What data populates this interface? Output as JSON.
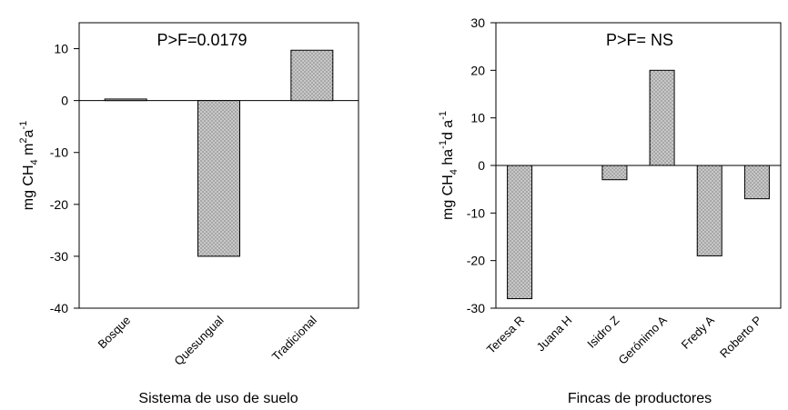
{
  "chart_data": [
    {
      "type": "bar",
      "annotation": "P>F=0.0179",
      "categories": [
        "Bosque",
        "Quesungual",
        "Tradicional"
      ],
      "values": [
        0.3,
        -30,
        9.7
      ],
      "xlabel": "Sistema de uso de suelo",
      "ylabel": {
        "base": "mg CH",
        "sub": "4",
        "mid1": " m",
        "sup1": "2",
        "mid2": "a",
        "sup2": "-1"
      },
      "ylim": [
        -40,
        15
      ],
      "yticks": [
        10,
        0,
        -10,
        -20,
        -30,
        -40
      ],
      "tick_labels": [
        "10",
        "0",
        "-10",
        "-20",
        "-30",
        "-40"
      ],
      "grid": false,
      "bar_pattern": "dotted-gray"
    },
    {
      "type": "bar",
      "annotation": "P>F= NS",
      "categories": [
        "Teresa R",
        "Juana H",
        "Isidro Z",
        "Gerónimo A",
        "Fredy A",
        "Roberto P"
      ],
      "values": [
        -28,
        0,
        -3,
        20,
        -19,
        -7
      ],
      "xlabel": "Fincas de productores",
      "ylabel": {
        "base": "mg CH",
        "sub": "4",
        "mid1": " ha",
        "sup1": "-1",
        "mid2": "d a",
        "sup2": "-1"
      },
      "ylim": [
        -30,
        30
      ],
      "yticks": [
        30,
        20,
        10,
        0,
        -10,
        -20,
        -30
      ],
      "tick_labels": [
        "30",
        "20",
        "10",
        "0",
        "-10",
        "-20",
        "-30"
      ],
      "grid": false,
      "bar_pattern": "dotted-gray"
    }
  ]
}
